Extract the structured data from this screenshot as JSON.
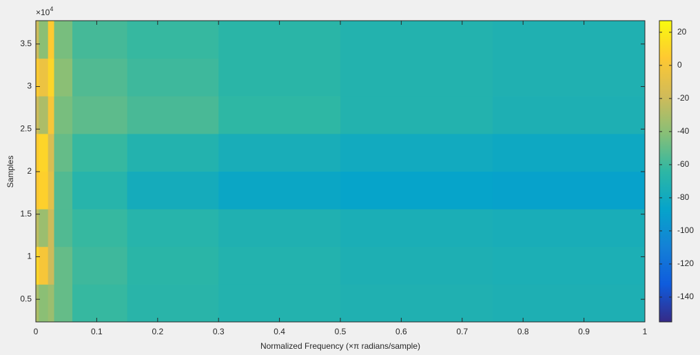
{
  "chart_data": {
    "type": "heatmap",
    "xlabel": "Normalized Frequency (×π radians/sample)",
    "ylabel": "Samples",
    "y_multiplier": "×10",
    "y_multiplier_exponent": "4",
    "xlim": [
      0,
      1
    ],
    "xticks": [
      0,
      0.1,
      0.2,
      0.3,
      0.4,
      0.5,
      0.6,
      0.7,
      0.8,
      0.9,
      1
    ],
    "ylim": [
      2340,
      37740
    ],
    "yticks": [
      {
        "value": 5000,
        "label": "0.5"
      },
      {
        "value": 10000,
        "label": "1"
      },
      {
        "value": 15000,
        "label": "1.5"
      },
      {
        "value": 20000,
        "label": "2"
      },
      {
        "value": 25000,
        "label": "2.5"
      },
      {
        "value": 30000,
        "label": "3"
      },
      {
        "value": 35000,
        "label": "3.5"
      }
    ],
    "x_edges": [
      0,
      0.005,
      0.02,
      0.03,
      0.06,
      0.15,
      0.3,
      0.5,
      0.75,
      1
    ],
    "y_edges": [
      2340,
      6765,
      11190,
      15615,
      20040,
      24465,
      28890,
      33315,
      37740
    ],
    "values": [
      [
        -30,
        -40,
        -35,
        -50,
        -62,
        -67,
        -70,
        -72,
        -73
      ],
      [
        10,
        0,
        -20,
        -50,
        -60,
        -66,
        -70,
        -73,
        -74
      ],
      [
        -25,
        -35,
        -20,
        -55,
        -62,
        -68,
        -72,
        -75,
        -76
      ],
      [
        3,
        8,
        -10,
        -55,
        -68,
        -78,
        -84,
        -87,
        -88
      ],
      [
        5,
        10,
        -15,
        -50,
        -62,
        -70,
        -76,
        -80,
        -82
      ],
      [
        -20,
        -30,
        0,
        -45,
        -52,
        -57,
        -64,
        -70,
        -73
      ],
      [
        5,
        -5,
        10,
        -40,
        -55,
        -60,
        -66,
        -70,
        -72
      ],
      [
        -20,
        -40,
        5,
        -45,
        -58,
        -62,
        -66,
        -70,
        -72
      ]
    ],
    "clim": [
      -155,
      27
    ],
    "cticks": [
      -140,
      -120,
      -100,
      -80,
      -60,
      -40,
      -20,
      0,
      20
    ],
    "colormap": [
      "#352a87",
      "#0f5cdd",
      "#1481d6",
      "#06a4ca",
      "#2eb7a4",
      "#87bf77",
      "#d1bb59",
      "#fec832",
      "#f9fb0e"
    ]
  }
}
